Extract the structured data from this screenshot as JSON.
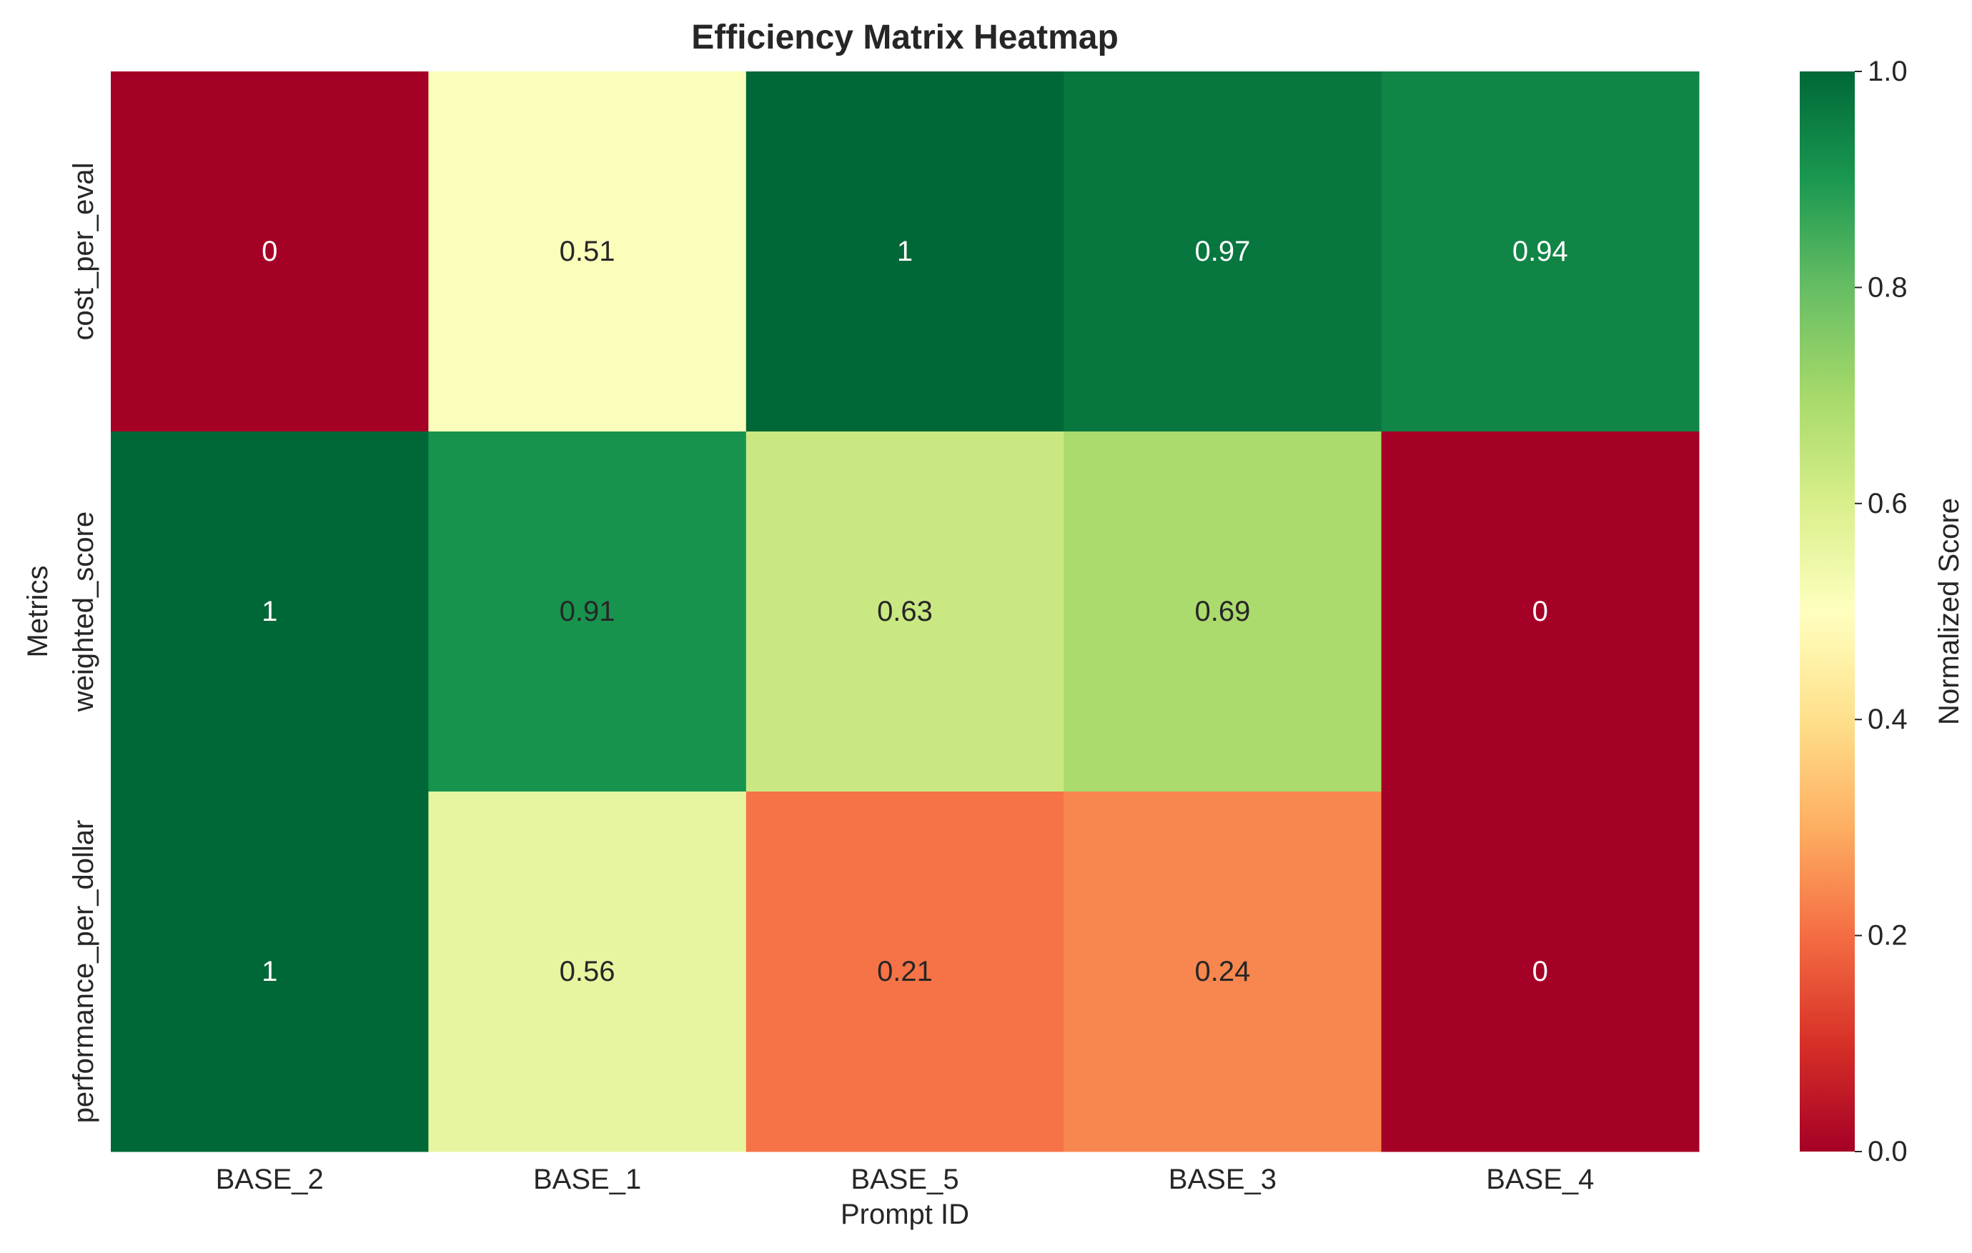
{
  "chart_data": {
    "type": "heatmap",
    "title": "Efficiency Matrix Heatmap",
    "xlabel": "Prompt ID",
    "ylabel": "Metrics",
    "columns": [
      "BASE_2",
      "BASE_1",
      "BASE_5",
      "BASE_3",
      "BASE_4"
    ],
    "rows": [
      "cost_per_eval",
      "weighted_score",
      "performance_per_dollar"
    ],
    "values": [
      [
        0,
        0.51,
        1,
        0.97,
        0.94
      ],
      [
        1,
        0.91,
        0.63,
        0.69,
        0
      ],
      [
        1,
        0.56,
        0.21,
        0.24,
        0
      ]
    ],
    "cell_labels": [
      [
        "0",
        "0.51",
        "1",
        "0.97",
        "0.94"
      ],
      [
        "1",
        "0.91",
        "0.63",
        "0.69",
        "0"
      ],
      [
        "1",
        "0.56",
        "0.21",
        "0.24",
        "0"
      ]
    ],
    "colormap": "RdYlGn",
    "vmin": 0,
    "vmax": 1,
    "colorbar": {
      "label": "Normalized Score",
      "ticks": [
        "0.0",
        "0.2",
        "0.4",
        "0.6",
        "0.8",
        "1.0"
      ]
    }
  }
}
